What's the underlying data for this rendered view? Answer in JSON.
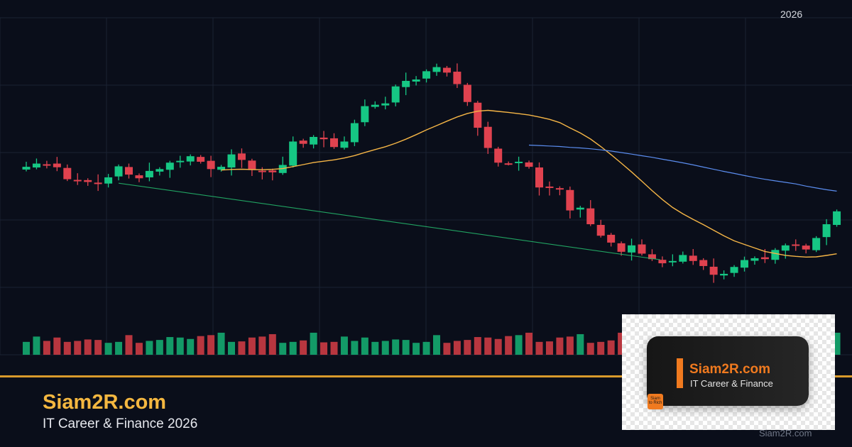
{
  "banner": {
    "year": "2026",
    "brand_title": "Siam2R.com",
    "brand_subtitle": "IT Career & Finance 2026",
    "footer_domain": "Siam2R.com",
    "accent_color": "#f4b740",
    "divider_color": "#d99a2b"
  },
  "logo": {
    "title": "Siam2R.com",
    "subtitle": "IT Career & Finance",
    "mini_line1": "Siam",
    "mini_line2": "to Rich",
    "brand_color": "#f07a1f"
  },
  "chart_data": {
    "type": "candlestick",
    "up_color": "#16c784",
    "down_color": "#e0424f",
    "ma_fast_color": "#f5b546",
    "ma_slow_color": "#5b8def",
    "trendline_color": "#24b46a",
    "candles": [
      [
        4,
        4,
        8,
        12
      ],
      [
        4,
        8,
        4,
        12
      ],
      [
        5,
        4,
        9,
        11
      ],
      [
        5,
        7,
        12,
        13
      ],
      [
        8,
        9,
        11,
        11
      ],
      [
        9,
        12,
        17,
        18
      ],
      [
        9,
        6,
        9,
        10
      ],
      [
        7,
        7,
        9,
        9
      ],
      [
        9,
        9,
        8,
        11
      ],
      [
        9,
        7,
        9,
        10
      ],
      [
        9,
        3,
        8,
        11
      ],
      [
        9,
        2,
        6,
        10
      ],
      [
        9,
        3,
        7,
        14
      ],
      [
        9,
        8,
        9,
        10
      ],
      [
        7,
        6,
        8,
        10
      ],
      [
        6,
        6,
        5,
        7
      ],
      [
        5,
        5,
        7,
        10
      ],
      [
        4,
        6,
        8,
        10
      ],
      [
        3,
        4,
        6,
        7
      ],
      [
        4,
        1,
        9,
        10
      ],
      [
        3,
        5,
        5,
        7
      ],
      [
        3,
        3,
        5,
        12
      ],
      [
        6,
        5,
        9,
        15
      ],
      [
        7,
        2,
        6,
        6
      ],
      [
        7,
        1,
        6,
        10
      ],
      [
        4,
        4,
        4,
        9
      ],
      [
        4,
        2,
        3,
        12
      ],
      [
        5,
        0,
        9,
        10
      ],
      [
        5,
        10,
        14,
        15
      ],
      [
        7,
        2,
        9,
        13
      ]
    ],
    "volume": [
      12,
      23,
      14,
      21,
      12,
      14,
      17,
      16,
      10,
      12,
      26,
      10,
      14,
      16,
      22,
      21,
      18,
      24,
      26,
      31,
      12,
      13,
      21,
      23,
      28,
      10,
      12,
      15,
      31,
      11
    ]
  }
}
